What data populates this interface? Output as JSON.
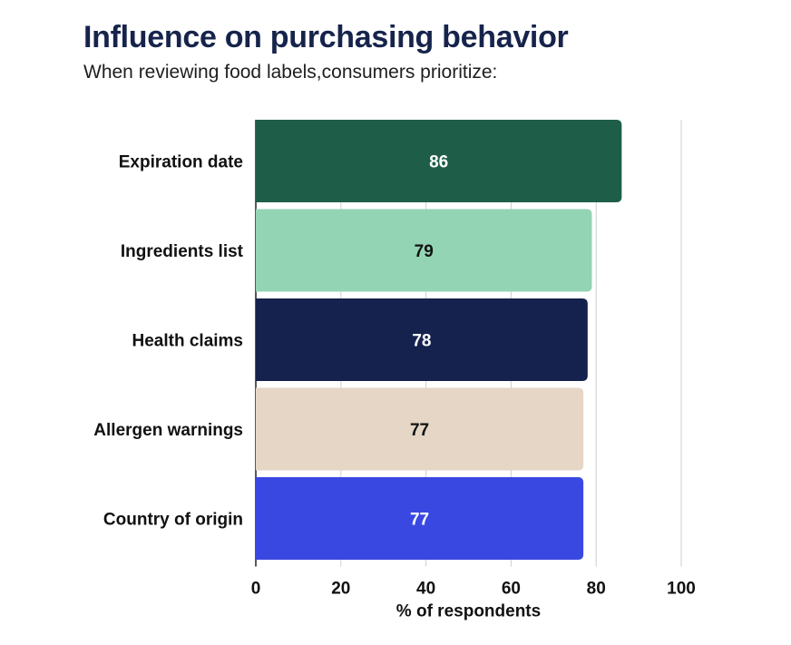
{
  "header": {
    "title": "Influence on purchasing behavior",
    "subtitle": "When reviewing food labels,consumers prioritize:"
  },
  "chart_data": {
    "type": "bar",
    "orientation": "horizontal",
    "title": "Influence on purchasing behavior",
    "subtitle": "When reviewing food labels,consumers prioritize:",
    "categories": [
      "Expiration date",
      "Ingredients list",
      "Health claims",
      "Allergen warnings",
      "Country of origin"
    ],
    "values": [
      86,
      79,
      78,
      77,
      77
    ],
    "colors": [
      "#1e5e48",
      "#93d4b5",
      "#15224e",
      "#e5d6c5",
      "#3a48e2"
    ],
    "label_colors": [
      "#ffffff",
      "#111111",
      "#ffffff",
      "#111111",
      "#ffffff"
    ],
    "xlabel": "% of respondents",
    "ylabel": "",
    "xlim": [
      0,
      100
    ],
    "xticks": [
      0,
      20,
      40,
      60,
      80,
      100
    ],
    "grid": true,
    "legend": "none"
  }
}
